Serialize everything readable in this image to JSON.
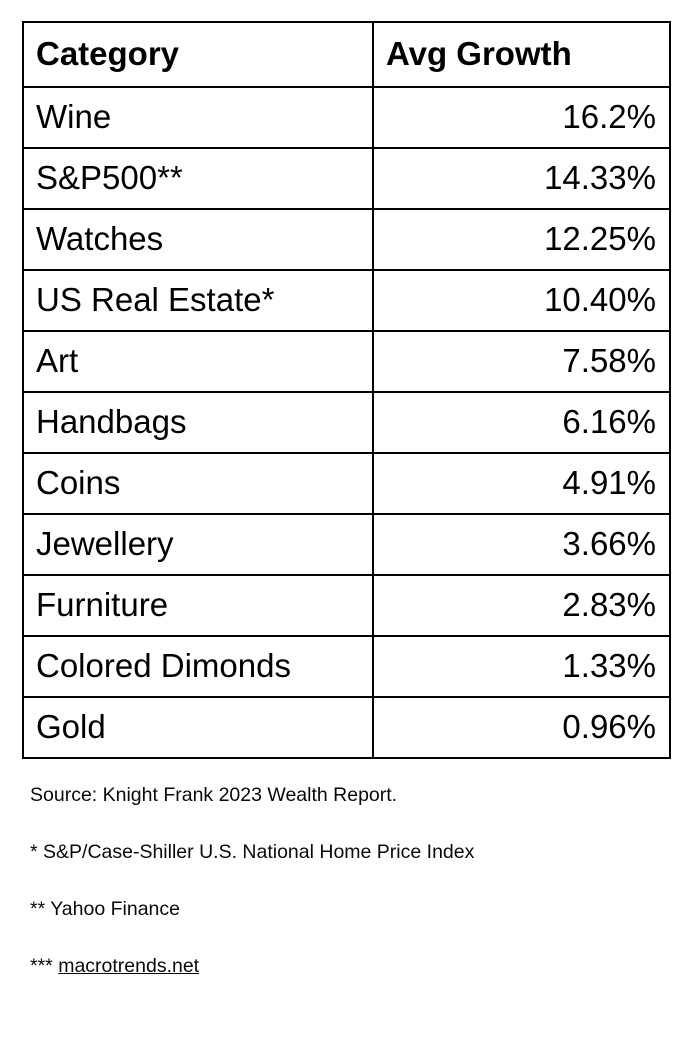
{
  "page": {
    "background_color": "#ffffff",
    "text_color": "#000000",
    "border_color": "#000000"
  },
  "table": {
    "columns": [
      "Category",
      "Avg Growth"
    ],
    "rows": [
      {
        "category": "Wine",
        "growth": "16.2%"
      },
      {
        "category": "S&P500**",
        "growth": "14.33%"
      },
      {
        "category": "Watches",
        "growth": "12.25%"
      },
      {
        "category": "US Real Estate*",
        "growth": "10.40%"
      },
      {
        "category": "Art",
        "growth": "7.58%"
      },
      {
        "category": "Handbags",
        "growth": "6.16%"
      },
      {
        "category": "Coins",
        "growth": "4.91%"
      },
      {
        "category": "Jewellery",
        "growth": "3.66%"
      },
      {
        "category": "Furniture",
        "growth": "2.83%"
      },
      {
        "category": "Colored Dimonds",
        "growth": "1.33%"
      },
      {
        "category": "Gold",
        "growth": "0.96%"
      }
    ]
  },
  "footnotes": {
    "source": "Source: Knight Frank 2023 Wealth Report.",
    "real_estate": "* S&P/Case-Shiller U.S. National Home Price Index",
    "sp500": "** Yahoo Finance",
    "macrotrends_marker": "***",
    "macrotrends_link": "macrotrends.net"
  },
  "chart_data": {
    "type": "table",
    "title": "",
    "columns": [
      "Category",
      "Avg Growth"
    ],
    "categories": [
      "Wine",
      "S&P500**",
      "Watches",
      "US Real Estate*",
      "Art",
      "Handbags",
      "Coins",
      "Jewellery",
      "Furniture",
      "Colored Dimonds",
      "Gold"
    ],
    "values": [
      16.2,
      14.33,
      12.25,
      10.4,
      7.58,
      6.16,
      4.91,
      3.66,
      2.83,
      1.33,
      0.96
    ],
    "unit": "%",
    "source": "Knight Frank 2023 Wealth Report",
    "annotations": [
      "* S&P/Case-Shiller U.S. National Home Price Index",
      "** Yahoo Finance",
      "*** macrotrends.net"
    ]
  }
}
